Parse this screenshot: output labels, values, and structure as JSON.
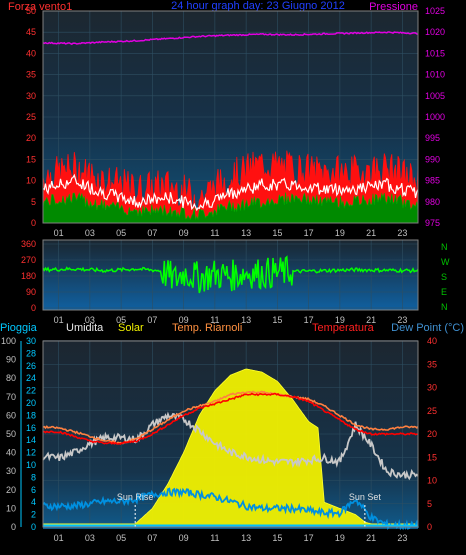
{
  "chart_data": [
    {
      "type": "line",
      "title": "24 hour graph day: 23 Giugno 2012",
      "left_axis_label": "Forza vento1",
      "right_axis_label": "Pressione",
      "ylim_left": [
        0,
        50
      ],
      "ylim_right": [
        975,
        1025
      ],
      "yticks_left": [
        "0",
        "5",
        "10",
        "15",
        "20",
        "25",
        "30",
        "35",
        "40",
        "45",
        "50"
      ],
      "yticks_right": [
        "975",
        "980",
        "985",
        "990",
        "995",
        "1000",
        "1005",
        "1010",
        "1015",
        "1020",
        "1025"
      ],
      "xticks": [
        "01",
        "03",
        "05",
        "07",
        "09",
        "11",
        "13",
        "15",
        "17",
        "19",
        "21",
        "23"
      ],
      "series": [
        {
          "role": "pressure",
          "x": [
            0,
            2,
            4,
            6,
            8,
            10,
            12,
            14,
            16,
            18,
            20,
            22,
            24
          ],
          "values": [
            1017.5,
            1017.3,
            1017.7,
            1018.0,
            1018.5,
            1019.0,
            1019.3,
            1019.5,
            1019.4,
            1019.6,
            1019.8,
            1020.0,
            1019.7
          ]
        },
        {
          "role": "gust",
          "x": [
            0,
            2,
            4,
            6,
            8,
            10,
            12,
            14,
            16,
            18,
            20,
            22,
            24
          ],
          "values": [
            11,
            13,
            10,
            8,
            9,
            6,
            11,
            14,
            13,
            12,
            12,
            13,
            10
          ]
        },
        {
          "role": "average",
          "x": [
            0,
            2,
            4,
            6,
            8,
            10,
            12,
            14,
            16,
            18,
            20,
            22,
            24
          ],
          "values": [
            8,
            10,
            7,
            5,
            6,
            4,
            7,
            9,
            9,
            8,
            8,
            9,
            7
          ]
        },
        {
          "role": "base",
          "x": [
            0,
            2,
            4,
            6,
            8,
            10,
            12,
            14,
            16,
            18,
            20,
            22,
            24
          ],
          "values": [
            5,
            6,
            4,
            3,
            3,
            2,
            4,
            5,
            6,
            5,
            5,
            6,
            4
          ]
        }
      ],
      "colors": {
        "pressure": "#e000e0",
        "gust": "#ff1010",
        "average": "#ffffff",
        "base": "#008a00"
      }
    },
    {
      "type": "line",
      "ylim": [
        0,
        360
      ],
      "yticks": [
        "0",
        "90",
        "180",
        "270",
        "360"
      ],
      "compass": [
        "N",
        "W",
        "S",
        "E",
        "N"
      ],
      "xticks": [
        "01",
        "03",
        "05",
        "07",
        "09",
        "11",
        "13",
        "15",
        "17",
        "19",
        "21",
        "23"
      ],
      "series": [
        {
          "role": "direction",
          "x": [
            0,
            2,
            4,
            6,
            7.5,
            8.5,
            9,
            10,
            11,
            12,
            13,
            14,
            16,
            18,
            20,
            22,
            24
          ],
          "values": [
            215,
            220,
            210,
            220,
            210,
            160,
            200,
            170,
            190,
            180,
            200,
            195,
            205,
            210,
            215,
            212,
            210
          ]
        }
      ],
      "colors": {
        "direction": "#00ff00"
      }
    },
    {
      "type": "line",
      "legend": [
        "Pioggia",
        "Umidita",
        "Solar",
        "Temp. Riarnoli",
        "Temperatura",
        "Dew Point (°C)"
      ],
      "ylim_humidity": [
        0,
        100
      ],
      "ylim_solar": [
        0,
        30
      ],
      "ylim_temp": [
        0,
        40
      ],
      "yticks_humidity": [
        "0",
        "10",
        "20",
        "30",
        "40",
        "50",
        "60",
        "70",
        "80",
        "90",
        "100"
      ],
      "yticks_solar": [
        "0",
        "2",
        "4",
        "6",
        "8",
        "10",
        "12",
        "14",
        "16",
        "18",
        "20",
        "22",
        "24",
        "26",
        "28",
        "30"
      ],
      "yticks_temp": [
        "0",
        "5",
        "10",
        "15",
        "20",
        "25",
        "30",
        "35",
        "40"
      ],
      "xticks": [
        "01",
        "03",
        "05",
        "07",
        "09",
        "11",
        "13",
        "15",
        "17",
        "19",
        "21",
        "23"
      ],
      "annotations": [
        {
          "text": "Sun Rise",
          "x": 5.9
        },
        {
          "text": "Sun Set",
          "x": 20.6
        }
      ],
      "series": [
        {
          "role": "solar",
          "x": [
            0,
            5.9,
            7,
            8,
            9,
            10,
            11,
            12,
            13,
            14,
            15,
            16,
            17,
            17.6,
            18,
            19,
            20,
            20.6,
            21,
            24
          ],
          "values": [
            0.5,
            0.5,
            3,
            7,
            12,
            18,
            22,
            24.5,
            25.5,
            25,
            23.5,
            20.5,
            17,
            16,
            4,
            3,
            2,
            0.8,
            0.5,
            0.5
          ]
        },
        {
          "role": "temp_riarnoli",
          "x": [
            0,
            1,
            2,
            3,
            4,
            5,
            6,
            7,
            8,
            9,
            10,
            11,
            12,
            13,
            14,
            15,
            16,
            17,
            18,
            19,
            20,
            21,
            22,
            23,
            24
          ],
          "values": [
            21.5,
            21.3,
            20.5,
            19.5,
            18.5,
            18,
            19,
            21,
            23,
            25,
            26,
            27,
            28.5,
            29,
            29,
            28.5,
            28,
            27.5,
            26,
            24,
            22,
            21,
            21,
            21.5,
            21.5
          ]
        },
        {
          "role": "temperatura",
          "x": [
            0,
            1,
            2,
            3,
            4,
            5,
            6,
            7,
            8,
            9,
            10,
            11,
            12,
            13,
            14,
            15,
            16,
            17,
            18,
            19,
            20,
            21,
            22,
            23,
            24
          ],
          "values": [
            20.5,
            20.5,
            19.5,
            18.5,
            18,
            18,
            18.5,
            20,
            22,
            24,
            25.5,
            26.5,
            27.5,
            28.5,
            28.5,
            28.5,
            28,
            27,
            25,
            23,
            21,
            20,
            20,
            20,
            20
          ]
        },
        {
          "role": "umidita",
          "x": [
            0,
            1,
            2,
            3,
            4,
            5,
            6,
            7,
            8,
            9,
            10,
            11,
            12,
            13,
            14,
            15,
            16,
            17,
            18,
            19,
            20,
            21,
            22,
            23,
            24
          ],
          "values": [
            38,
            37,
            40,
            45,
            48,
            48,
            47,
            55,
            60,
            58,
            52,
            45,
            40,
            38,
            36,
            35,
            35,
            36,
            37,
            35,
            55,
            44,
            30,
            28,
            28
          ]
        },
        {
          "role": "dewpoint",
          "x": [
            0,
            1,
            2,
            3,
            4,
            5,
            6,
            7,
            8,
            9,
            10,
            11,
            12,
            13,
            14,
            15,
            16,
            17,
            18,
            19,
            20,
            21,
            22,
            23,
            24
          ],
          "values": [
            4.5,
            4.5,
            4.5,
            5,
            5.5,
            5.5,
            6,
            7,
            7.5,
            7.5,
            7,
            6.5,
            5.5,
            4.5,
            4,
            4,
            4,
            3.5,
            3,
            3,
            6,
            2,
            0.5,
            0.3,
            0.3
          ]
        },
        {
          "role": "pioggia",
          "x": [
            0,
            24
          ],
          "values": [
            0,
            0
          ]
        }
      ],
      "colors": {
        "pioggia": "#00c0ff",
        "umidita": "#c8c8c8",
        "solar": "#f0f000",
        "temp_riarnoli": "#ff8040",
        "temperatura": "#ff0000",
        "dewpoint": "#0090e0"
      }
    }
  ]
}
